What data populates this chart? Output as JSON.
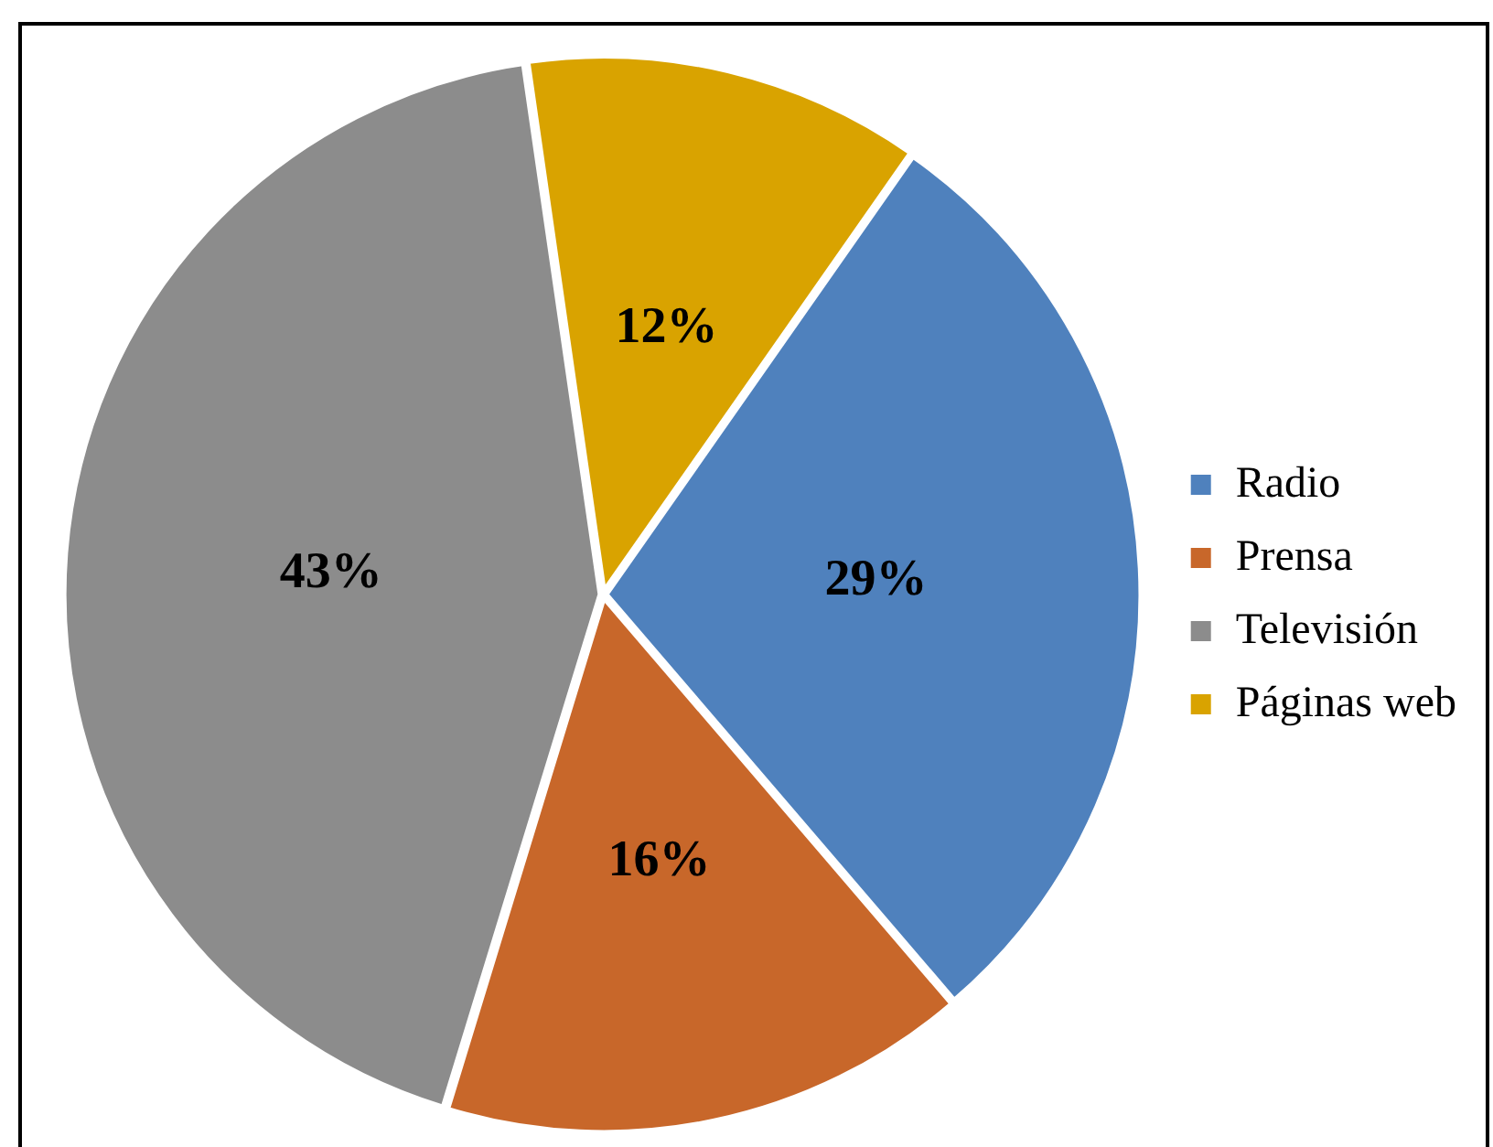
{
  "chart_data": {
    "type": "pie",
    "categories": [
      "Radio",
      "Prensa",
      "Televisión",
      "Páginas web"
    ],
    "values": [
      29,
      16,
      43,
      12
    ],
    "colors": [
      "#4f81bd",
      "#c8672a",
      "#8c8c8c",
      "#d9a300"
    ],
    "value_labels": [
      "29%",
      "16%",
      "43%",
      "12%"
    ],
    "legend": "right"
  }
}
